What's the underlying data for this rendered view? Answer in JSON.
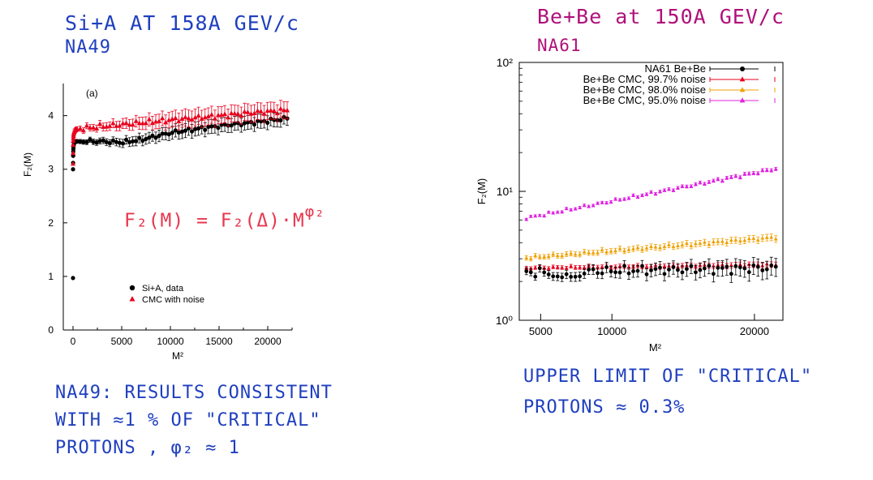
{
  "notes": {
    "left_title_1": "Si+A   AT 158A GEV/c",
    "left_title_2": "NA49",
    "right_title_1": "Be+Be at 150A GEV/c",
    "right_title_2": "NA61",
    "formula": "F₂(M) = F₂(Δ)·M",
    "formula_exp": "φ₂",
    "left_result_1": "NA49: RESULTS CONSISTENT",
    "left_result_2": "WITH ≈1 % OF \"CRITICAL\"",
    "left_result_3": "PROTONS , φ₂ ≈ 1",
    "right_result_1": "UPPER LIMIT OF \"CRITICAL\"",
    "right_result_2": "PROTONS  ≈  0.3%"
  },
  "colors": {
    "ink_blue": "#1f3fbf",
    "ink_magenta": "#b0107a",
    "ink_red": "#e8364f",
    "data_black": "#000000",
    "cmc_red": "#e8001c",
    "cmc_orange": "#f0a000",
    "cmc_magenta": "#e020e0"
  },
  "chart_data": [
    {
      "type": "scatter",
      "panel_label": "(a)",
      "xlabel": "M²",
      "ylabel": "F₂(M)",
      "xlim": [
        -1000,
        22500
      ],
      "ylim": [
        0,
        4.6
      ],
      "xticks": [
        0,
        5000,
        10000,
        15000,
        20000
      ],
      "yticks": [
        0,
        1,
        2,
        3,
        4
      ],
      "legend_position": "bottom-left",
      "grid": false,
      "series": [
        {
          "name": "Si+A, data",
          "marker": "circle",
          "color": "#000000",
          "start": {
            "x": [
              1,
              4,
              9,
              16,
              25,
              36,
              49,
              64,
              100,
              144,
              196,
              256,
              324,
              400
            ],
            "y": [
              0.97,
              3.0,
              3.12,
              3.25,
              3.33,
              3.38,
              3.42,
              3.45,
              3.48,
              3.5,
              3.51,
              3.52,
              3.52,
              3.52
            ]
          },
          "trend": {
            "x_from": 400,
            "x_to": 22000,
            "n": 64,
            "knots": [
              [
                400,
                3.52
              ],
              [
                3000,
                3.52
              ],
              [
                5000,
                3.5
              ],
              [
                7000,
                3.55
              ],
              [
                10000,
                3.68
              ],
              [
                13000,
                3.76
              ],
              [
                16000,
                3.83
              ],
              [
                19000,
                3.88
              ],
              [
                22000,
                3.95
              ]
            ],
            "jitter": 0.04
          },
          "error": 0.13
        },
        {
          "name": "CMC with noise",
          "marker": "triangle",
          "color": "#e8001c",
          "start": {
            "x": [
              4,
              9,
              16,
              25,
              36,
              49,
              64,
              100,
              144,
              196,
              256,
              324,
              400
            ],
            "y": [
              3.1,
              3.3,
              3.45,
              3.53,
              3.58,
              3.62,
              3.65,
              3.68,
              3.7,
              3.72,
              3.73,
              3.74,
              3.75
            ]
          },
          "trend": {
            "x_from": 400,
            "x_to": 22000,
            "n": 64,
            "knots": [
              [
                400,
                3.75
              ],
              [
                3000,
                3.8
              ],
              [
                6000,
                3.85
              ],
              [
                10000,
                3.92
              ],
              [
                14000,
                3.98
              ],
              [
                18000,
                4.05
              ],
              [
                22000,
                4.1
              ]
            ],
            "jitter": 0.05
          },
          "error": 0.16
        }
      ]
    },
    {
      "type": "scatter",
      "xlabel": "M²",
      "ylabel": "F₂(M)",
      "yscale": "log",
      "xlim": [
        3500,
        22000
      ],
      "ylim": [
        1,
        100
      ],
      "xticks": [
        5000,
        10000,
        20000
      ],
      "ytick_labels": [
        "10⁰",
        "10¹",
        "10²"
      ],
      "legend_position": "top-right",
      "grid": false,
      "series": [
        {
          "name": "NA61 Be+Be",
          "marker": "circle",
          "color": "#000000",
          "x_from": 4000,
          "x_to": 21500,
          "n": 56,
          "y_start": 2.35,
          "y_end": 2.55,
          "jitter": 0.09,
          "dip": [
            [
              5500,
              8000,
              2.2
            ]
          ],
          "error_frac_start": 0.06,
          "error_frac_end": 0.16
        },
        {
          "name": "Be+Be CMC, 99.7% noise",
          "marker": "triangle",
          "color": "#e8001c",
          "x_from": 4000,
          "x_to": 21500,
          "n": 56,
          "y_start": 2.55,
          "y_end": 2.7,
          "jitter": 0.02,
          "error_frac_start": 0.03,
          "error_frac_end": 0.05
        },
        {
          "name": "Be+Be CMC, 98.0% noise",
          "marker": "triangle",
          "color": "#f0a000",
          "x_from": 4000,
          "x_to": 21500,
          "n": 56,
          "y_start": 3.05,
          "y_end": 4.4,
          "jitter": 0.03,
          "error_frac_start": 0.04,
          "error_frac_end": 0.06
        },
        {
          "name": "Be+Be CMC, 95.0% noise",
          "marker": "triangle",
          "color": "#e020e0",
          "x_from": 4000,
          "x_to": 21500,
          "n": 56,
          "y_start": 6.2,
          "y_end": 15.0,
          "jitter": 0.03,
          "error_frac_start": 0.02,
          "error_frac_end": 0.03
        }
      ]
    }
  ]
}
